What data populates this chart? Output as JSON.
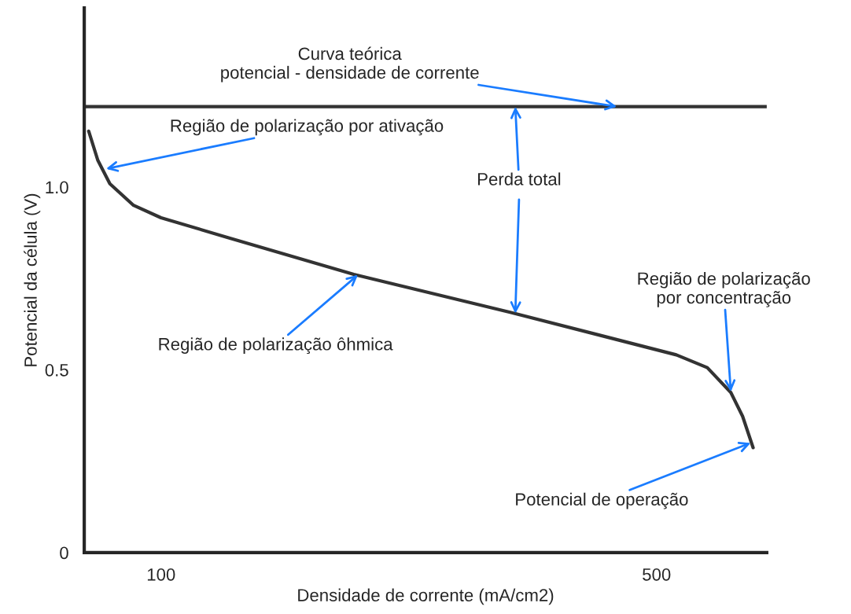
{
  "chart_data": {
    "type": "line",
    "xlabel": "Densidade de corrente (mA/cm2)",
    "ylabel": "Potencial da célula (V)",
    "xlim": [
      38,
      589
    ],
    "ylim": [
      0,
      1.49
    ],
    "xticks": [
      100,
      500
    ],
    "yticks": [
      {
        "value": 0,
        "label": "0"
      },
      0.5,
      {
        "value": 1.0,
        "label": "1.0"
      }
    ],
    "grid": false,
    "marker": "none",
    "line_style": "solid",
    "series": [
      {
        "color": "#333333",
        "x": [
          41.6,
          49,
          58.7,
          77.8,
          100,
          154,
          255.6,
          382.5,
          516,
          541,
          560,
          569.5,
          578
        ],
        "values": [
          1.153,
          1.073,
          1.009,
          0.95,
          0.916,
          0.862,
          0.761,
          0.657,
          0.541,
          0.506,
          0.438,
          0.373,
          0.287
        ]
      }
    ],
    "ref_lines": [
      {
        "axis": "y",
        "value": 1.22,
        "color": "#333333"
      }
    ],
    "annotations": [
      {
        "text": "Curva teórica\npotencial - densidade de corrente",
        "x": 468,
        "y": 1.22
      },
      {
        "text": "Região de polarização por ativação",
        "x": 55.6,
        "y": 1.05
      },
      {
        "text": "Perda total",
        "x": 386,
        "y": 1.22
      },
      {
        "text": "Região de polarização ôhmica",
        "x": 259,
        "y": 0.76
      },
      {
        "text": "Região de polarização\npor concentração",
        "x": 560,
        "y": 0.44
      },
      {
        "text": "Potencial de operação",
        "x": 576,
        "y": 0.3
      }
    ]
  }
}
